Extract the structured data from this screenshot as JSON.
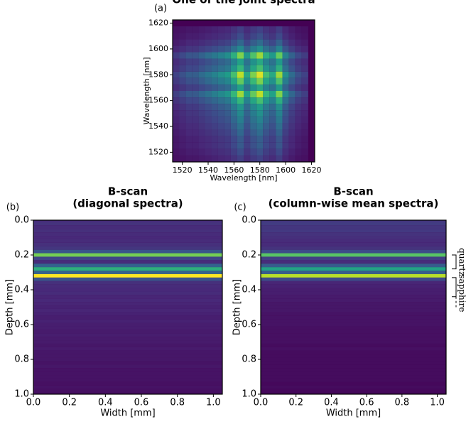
{
  "chart_data": [
    {
      "type": "heatmap",
      "panel": "(a)",
      "title": [
        "One of the joint spectra"
      ],
      "xlabel": "Wavelength [nm]",
      "ylabel": "Wavelength [nm]",
      "x": [
        1515,
        1520,
        1525,
        1530,
        1535,
        1540,
        1545,
        1550,
        1555,
        1560,
        1565,
        1570,
        1575,
        1580,
        1585,
        1590,
        1595,
        1600,
        1605,
        1610,
        1615
      ],
      "y": [
        1515,
        1520,
        1525,
        1530,
        1535,
        1540,
        1545,
        1550,
        1555,
        1560,
        1565,
        1570,
        1575,
        1580,
        1585,
        1590,
        1595,
        1600,
        1605,
        1610,
        1615
      ],
      "values": [
        0.2,
        0.25,
        0.3,
        0.3,
        0.35,
        0.4,
        0.45,
        0.5,
        0.55,
        0.7,
        0.9,
        0.6,
        0.8,
        0.95,
        0.7,
        0.6,
        0.85,
        0.5,
        0.35,
        0.25,
        0.2
      ],
      "xlim": [
        1512.5,
        1622.5
      ],
      "ylim": [
        1512.5,
        1622.5
      ],
      "xticks": [
        1520,
        1540,
        1560,
        1580,
        1600,
        1620
      ],
      "yticks": [
        1520,
        1540,
        1560,
        1580,
        1600,
        1620
      ]
    },
    {
      "type": "bscan",
      "panel": "(b)",
      "title": [
        "B-scan",
        "(diagonal spectra)"
      ],
      "xlabel": "Width [mm]",
      "ylabel": "Depth [mm]",
      "y": [
        0,
        0.02,
        0.04,
        0.06,
        0.08,
        0.1,
        0.12,
        0.14,
        0.16,
        0.18,
        0.2,
        0.22,
        0.24,
        0.26,
        0.28,
        0.3,
        0.32,
        0.34,
        0.36,
        0.38,
        0.4,
        0.42,
        0.44,
        0.46,
        0.48,
        0.5,
        0.52,
        0.54,
        0.56,
        0.58,
        0.6,
        0.62,
        0.64,
        0.66,
        0.68,
        0.7,
        0.72,
        0.74,
        0.76,
        0.78,
        0.8,
        0.82,
        0.84,
        0.86,
        0.88,
        0.9,
        0.92,
        0.94,
        0.96,
        0.98,
        1.0
      ],
      "values": [
        0.12,
        0.14,
        0.12,
        0.13,
        0.12,
        0.11,
        0.12,
        0.13,
        0.15,
        0.25,
        0.75,
        0.2,
        0.12,
        0.3,
        0.6,
        0.3,
        0.95,
        0.25,
        0.13,
        0.12,
        0.11,
        0.12,
        0.1,
        0.11,
        0.1,
        0.09,
        0.1,
        0.09,
        0.08,
        0.09,
        0.08,
        0.08,
        0.07,
        0.08,
        0.07,
        0.07,
        0.06,
        0.07,
        0.06,
        0.06,
        0.06,
        0.05,
        0.06,
        0.05,
        0.05,
        0.05,
        0.05,
        0.04,
        0.05,
        0.04,
        0.04
      ],
      "xlim": [
        0,
        1.05
      ],
      "ylim": [
        0,
        1
      ],
      "y_inverted": true,
      "xticks": [
        {
          "value": 0,
          "label": "0.0"
        },
        0.2,
        0.4,
        0.6,
        0.8,
        {
          "value": 1,
          "label": "1.0"
        }
      ],
      "yticks": [
        {
          "value": 0,
          "label": "0.0"
        },
        0.2,
        0.4,
        0.6,
        0.8,
        {
          "value": 1,
          "label": "1.0"
        }
      ]
    },
    {
      "type": "bscan",
      "panel": "(c)",
      "title": [
        "B-scan",
        "(column-wise mean spectra)"
      ],
      "xlabel": "Width [mm]",
      "ylabel": "Depth [mm]",
      "y": [
        0,
        0.02,
        0.04,
        0.06,
        0.08,
        0.1,
        0.12,
        0.14,
        0.16,
        0.18,
        0.2,
        0.22,
        0.24,
        0.26,
        0.28,
        0.3,
        0.32,
        0.34,
        0.36,
        0.38,
        0.4,
        0.42,
        0.44,
        0.46,
        0.48,
        0.5,
        0.52,
        0.54,
        0.56,
        0.58,
        0.6,
        0.62,
        0.64,
        0.66,
        0.68,
        0.7,
        0.72,
        0.74,
        0.76,
        0.78,
        0.8,
        0.82,
        0.84,
        0.86,
        0.88,
        0.9,
        0.92,
        0.94,
        0.96,
        0.98,
        1.0
      ],
      "values": [
        0.15,
        0.17,
        0.15,
        0.16,
        0.14,
        0.13,
        0.12,
        0.12,
        0.14,
        0.22,
        0.7,
        0.18,
        0.12,
        0.28,
        0.55,
        0.28,
        0.85,
        0.22,
        0.1,
        0.09,
        0.08,
        0.08,
        0.07,
        0.07,
        0.06,
        0.06,
        0.06,
        0.05,
        0.05,
        0.05,
        0.05,
        0.04,
        0.04,
        0.04,
        0.04,
        0.04,
        0.03,
        0.04,
        0.03,
        0.03,
        0.03,
        0.03,
        0.03,
        0.03,
        0.03,
        0.03,
        0.03,
        0.02,
        0.03,
        0.02,
        0.02
      ],
      "xlim": [
        0,
        1.05
      ],
      "ylim": [
        0,
        1
      ],
      "y_inverted": true,
      "xticks": [
        {
          "value": 0,
          "label": "0.0"
        },
        0.2,
        0.4,
        0.6,
        0.8,
        {
          "value": 1,
          "label": "1.0"
        }
      ],
      "yticks": [
        {
          "value": 0,
          "label": "0.0"
        },
        0.2,
        0.4,
        0.6,
        0.8,
        {
          "value": 1,
          "label": "1.0"
        }
      ],
      "annotations": [
        "quartz",
        "sapphire"
      ]
    }
  ]
}
